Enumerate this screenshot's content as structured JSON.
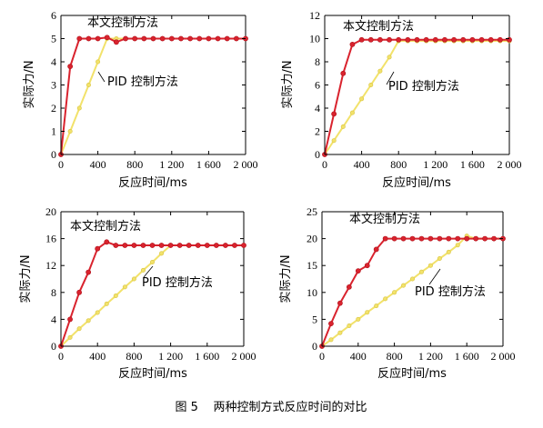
{
  "caption": "图 5    两种控制方式反应时间的对比",
  "chart_data": [
    {
      "type": "line",
      "xlabel": "反应时间/ms",
      "ylabel": "实际力/N",
      "xlim": [
        0,
        2000
      ],
      "ylim": [
        0,
        6
      ],
      "xticks": [
        "0",
        "400",
        "800",
        "1 200",
        "1 600",
        "2 000"
      ],
      "yticks": [
        "0",
        "1",
        "2",
        "3",
        "4",
        "5",
        "6"
      ],
      "grid": false,
      "series": [
        {
          "name": "本文控制方法",
          "color": "#d9232e",
          "x": [
            0,
            100,
            200,
            300,
            400,
            500,
            600,
            700,
            800,
            900,
            1000,
            1100,
            1200,
            1300,
            1400,
            1500,
            1600,
            1700,
            1800,
            1900,
            2000
          ],
          "y": [
            0,
            3.8,
            5,
            5,
            5,
            5.05,
            4.85,
            5,
            5,
            5,
            5,
            5,
            5,
            5,
            5,
            5,
            5,
            5,
            5,
            5,
            5
          ]
        },
        {
          "name": "PID 控制方法",
          "color": "#f2e26b",
          "x": [
            0,
            100,
            200,
            300,
            400,
            500,
            600,
            700,
            800,
            900,
            1000,
            1100,
            1200,
            1300,
            1400,
            1500,
            1600,
            1700,
            1800,
            1900,
            2000
          ],
          "y": [
            0,
            1,
            2,
            3,
            4,
            5,
            5,
            5,
            5,
            5,
            5,
            5,
            5,
            5,
            5,
            5,
            5,
            5,
            5,
            5,
            5
          ]
        }
      ],
      "annotations": [
        {
          "text": "本文控制方法",
          "x": 300,
          "y": 5.55
        },
        {
          "text": "PID 控制方法",
          "x": 420,
          "y": 3.05
        }
      ]
    },
    {
      "type": "line",
      "xlabel": "反应时间/ms",
      "ylabel": "实际力/N",
      "xlim": [
        0,
        2000
      ],
      "ylim": [
        0,
        12
      ],
      "xticks": [
        "0",
        "400",
        "800",
        "1 200",
        "1 600",
        "2 000"
      ],
      "yticks": [
        "0",
        "2",
        "4",
        "6",
        "8",
        "10",
        "12"
      ],
      "grid": false,
      "series": [
        {
          "name": "本文控制方法",
          "color": "#d9232e",
          "x": [
            0,
            100,
            200,
            300,
            400,
            500,
            600,
            700,
            800,
            900,
            1000,
            1100,
            1200,
            1300,
            1400,
            1500,
            1600,
            1700,
            1800,
            1900,
            2000
          ],
          "y": [
            0,
            3.5,
            7,
            9.5,
            9.9,
            9.9,
            9.9,
            9.9,
            9.9,
            9.9,
            9.9,
            9.9,
            9.9,
            9.9,
            9.9,
            9.9,
            9.9,
            9.9,
            9.9,
            9.9,
            9.9
          ]
        },
        {
          "name": "PID 控制方法",
          "color": "#f2e26b",
          "x": [
            0,
            100,
            200,
            300,
            400,
            500,
            600,
            700,
            800,
            900,
            1000,
            1100,
            1200,
            1300,
            1400,
            1500,
            1600,
            1700,
            1800,
            1900,
            2000
          ],
          "y": [
            0,
            1.2,
            2.4,
            3.6,
            4.8,
            6,
            7.2,
            8.4,
            9.8,
            9.8,
            9.8,
            9.8,
            9.8,
            9.8,
            9.8,
            9.8,
            9.8,
            9.8,
            9.8,
            9.8,
            9.8
          ]
        }
      ],
      "annotations": [
        {
          "text": "本文控制方法",
          "x": 250,
          "y": 11.1
        },
        {
          "text": "PID 控制方法",
          "x": 770,
          "y": 6.3
        }
      ]
    },
    {
      "type": "line",
      "xlabel": "反应时间/ms",
      "ylabel": "实际力/N",
      "xlim": [
        0,
        2000
      ],
      "ylim": [
        0,
        20
      ],
      "xticks": [
        "0",
        "400",
        "800",
        "1 200",
        "1 600",
        "2 000"
      ],
      "yticks": [
        "0",
        "4",
        "8",
        "12",
        "16",
        "20"
      ],
      "grid": false,
      "series": [
        {
          "name": "本文控制方法",
          "color": "#d9232e",
          "x": [
            0,
            100,
            200,
            300,
            400,
            500,
            600,
            700,
            800,
            900,
            1000,
            1100,
            1200,
            1300,
            1400,
            1500,
            1600,
            1700,
            1800,
            1900,
            2000
          ],
          "y": [
            0,
            4,
            8,
            11,
            14.5,
            15.5,
            15,
            15,
            15,
            15,
            15,
            15,
            15,
            15,
            15,
            15,
            15,
            15,
            15,
            15,
            15
          ]
        },
        {
          "name": "PID 控制方法",
          "color": "#f2e26b",
          "x": [
            0,
            100,
            200,
            300,
            400,
            500,
            600,
            700,
            800,
            900,
            1000,
            1100,
            1200,
            1300,
            1400,
            1500,
            1600,
            1700,
            1800,
            1900,
            2000
          ],
          "y": [
            0,
            1.3,
            2.6,
            3.8,
            5,
            6.3,
            7.5,
            8.8,
            10,
            11.3,
            12.5,
            13.8,
            15,
            15,
            15,
            15,
            15,
            15,
            15,
            15,
            15
          ]
        }
      ],
      "annotations": [
        {
          "text": "本文控制方法",
          "x": 100,
          "y": 17.3
        },
        {
          "text": "PID 控制方法",
          "x": 880,
          "y": 10.2
        }
      ]
    },
    {
      "type": "line",
      "xlabel": "反应时间/ms",
      "ylabel": "实际力/N",
      "xlim": [
        0,
        2000
      ],
      "ylim": [
        0,
        25
      ],
      "xticks": [
        "0",
        "400",
        "800",
        "1 200",
        "1 600",
        "2 000"
      ],
      "yticks": [
        "0",
        "5",
        "10",
        "15",
        "20",
        "25"
      ],
      "grid": false,
      "series": [
        {
          "name": "本文控制方法",
          "color": "#d9232e",
          "x": [
            0,
            100,
            200,
            300,
            400,
            500,
            600,
            700,
            800,
            900,
            1000,
            1100,
            1200,
            1300,
            1400,
            1500,
            1600,
            1700,
            1800,
            1900,
            2000
          ],
          "y": [
            0,
            4.2,
            8,
            11,
            14,
            15,
            18,
            20,
            20,
            20,
            20,
            20,
            20,
            20,
            20,
            20,
            20,
            20,
            20,
            20,
            20
          ]
        },
        {
          "name": "PID 控制方法",
          "color": "#f2e26b",
          "x": [
            0,
            100,
            200,
            300,
            400,
            500,
            600,
            700,
            800,
            900,
            1000,
            1100,
            1200,
            1300,
            1400,
            1500,
            1600,
            1700,
            1800,
            1900,
            2000
          ],
          "y": [
            0,
            1.2,
            2.5,
            3.8,
            5,
            6.3,
            7.5,
            8.8,
            10,
            11.3,
            12.5,
            13.8,
            15,
            16.3,
            17.5,
            18.8,
            20.5,
            20,
            20,
            20,
            20
          ]
        }
      ],
      "annotations": [
        {
          "text": "本文控制方法",
          "x": 300,
          "y": 22.7
        },
        {
          "text": "PID 控制方法",
          "x": 1050,
          "y": 8.2
        }
      ]
    }
  ]
}
